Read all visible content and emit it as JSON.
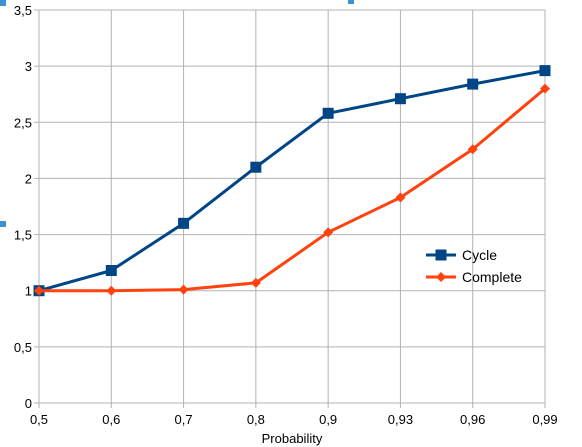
{
  "chart_data": {
    "type": "line",
    "title": "",
    "xlabel": "Probability",
    "ylabel": "",
    "categories": [
      "0,5",
      "0,6",
      "0,7",
      "0,8",
      "0,9",
      "0,93",
      "0,96",
      "0,99"
    ],
    "y_ticks": [
      "0",
      "0,5",
      "1",
      "1,5",
      "2",
      "2,5",
      "3",
      "3,5"
    ],
    "ylim": [
      0,
      3.5
    ],
    "grid": true,
    "legend_position": "right",
    "series": [
      {
        "name": "Cycle",
        "color": "#004586",
        "marker": "square",
        "values": [
          1.0,
          1.18,
          1.6,
          2.1,
          2.58,
          2.71,
          2.84,
          2.96
        ]
      },
      {
        "name": "Complete",
        "color": "#ff420e",
        "marker": "diamond",
        "values": [
          1.0,
          1.0,
          1.01,
          1.07,
          1.52,
          1.83,
          2.26,
          2.8
        ]
      }
    ]
  }
}
